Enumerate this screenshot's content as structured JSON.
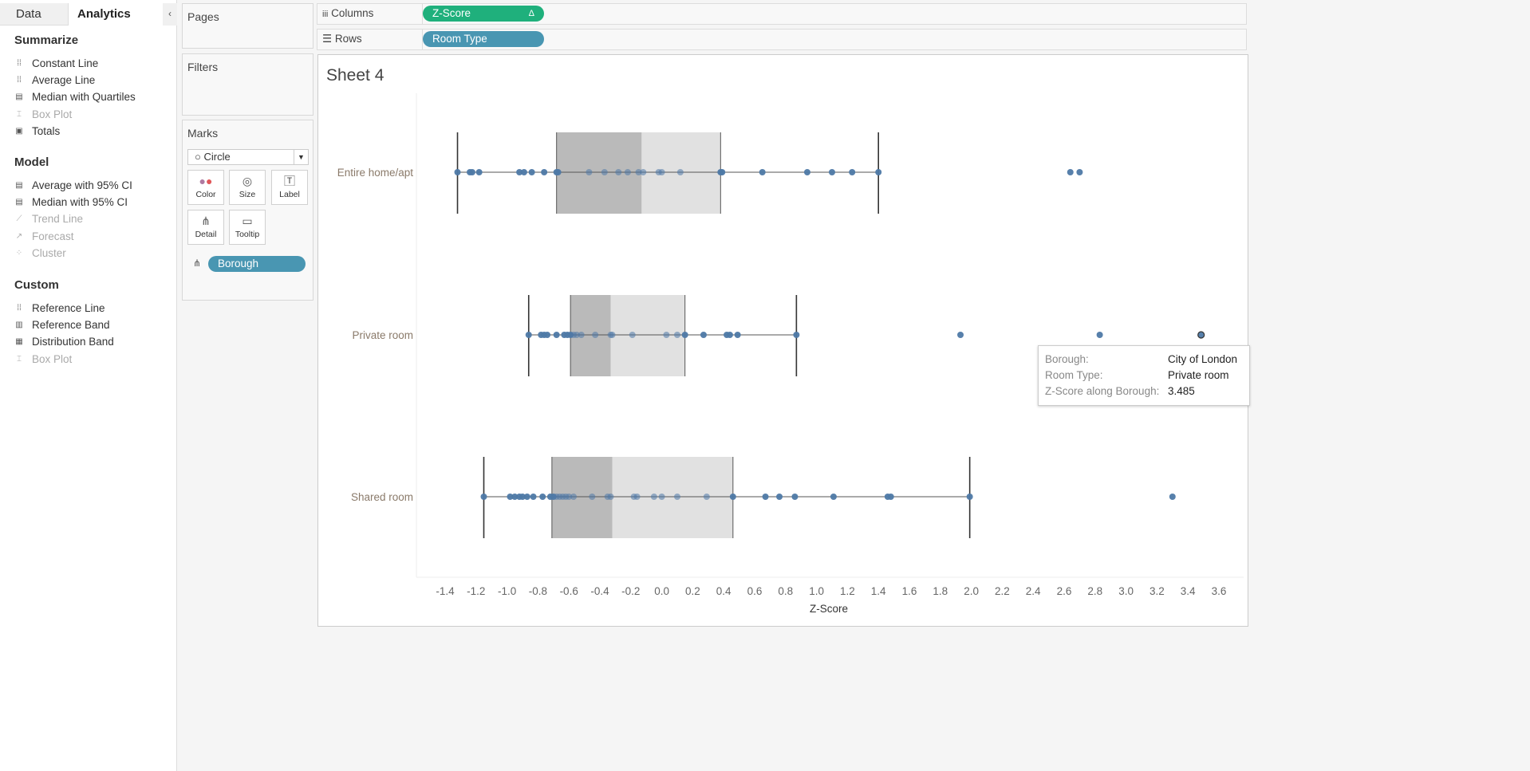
{
  "left_panel": {
    "tabs": [
      "Data",
      "Analytics"
    ],
    "collapse_glyph": "‹",
    "sections": [
      {
        "title": "Summarize",
        "items": [
          {
            "label": "Constant Line",
            "icon": "constant-line-icon",
            "enabled": true
          },
          {
            "label": "Average Line",
            "icon": "average-line-icon",
            "enabled": true
          },
          {
            "label": "Median with Quartiles",
            "icon": "median-quartiles-icon",
            "enabled": true
          },
          {
            "label": "Box Plot",
            "icon": "box-plot-icon",
            "enabled": false
          },
          {
            "label": "Totals",
            "icon": "totals-icon",
            "enabled": true
          }
        ]
      },
      {
        "title": "Model",
        "items": [
          {
            "label": "Average with 95% CI",
            "icon": "average-ci-icon",
            "enabled": true
          },
          {
            "label": "Median with 95% CI",
            "icon": "median-ci-icon",
            "enabled": true
          },
          {
            "label": "Trend Line",
            "icon": "trend-line-icon",
            "enabled": false
          },
          {
            "label": "Forecast",
            "icon": "forecast-icon",
            "enabled": false
          },
          {
            "label": "Cluster",
            "icon": "cluster-icon",
            "enabled": false
          }
        ]
      },
      {
        "title": "Custom",
        "items": [
          {
            "label": "Reference Line",
            "icon": "reference-line-icon",
            "enabled": true
          },
          {
            "label": "Reference Band",
            "icon": "reference-band-icon",
            "enabled": true
          },
          {
            "label": "Distribution Band",
            "icon": "distribution-band-icon",
            "enabled": true
          },
          {
            "label": "Box Plot",
            "icon": "box-plot-icon",
            "enabled": false
          }
        ]
      }
    ]
  },
  "cards": {
    "pages": "Pages",
    "filters": "Filters",
    "marks": "Marks",
    "mark_type": "Circle",
    "buttons": [
      "Color",
      "Size",
      "Label",
      "Detail",
      "Tooltip"
    ],
    "detail_pill": "Borough"
  },
  "shelves": {
    "columns_label": "Columns",
    "columns_pill": "Z-Score",
    "columns_pill_delta": "Δ",
    "rows_label": "Rows",
    "rows_pill": "Room Type"
  },
  "colors": {
    "green_pill": "#1fb07c",
    "blue_pill": "#4996b2",
    "mark": "#4e79a7",
    "box_dark": "#bababa",
    "box_light": "#e1e1e1"
  },
  "sheet_title": "Sheet 4",
  "tooltip": {
    "rows": [
      {
        "k": "Borough:",
        "v": "City of London"
      },
      {
        "k": "Room Type:",
        "v": "Private room"
      },
      {
        "k": "Z-Score along Borough:",
        "v": "3.485"
      }
    ]
  },
  "chart_data": {
    "type": "scatter",
    "title": "Sheet 4",
    "xlabel": "Z-Score",
    "ylabel": "Room Type",
    "xlim": [
      -1.5,
      3.7
    ],
    "xticks": [
      -1.4,
      -1.2,
      -1.0,
      -0.8,
      -0.6,
      -0.4,
      -0.2,
      0.0,
      0.2,
      0.4,
      0.6,
      0.8,
      1.0,
      1.2,
      1.4,
      1.6,
      1.8,
      2.0,
      2.2,
      2.4,
      2.6,
      2.8,
      3.0,
      3.2,
      3.4,
      3.6
    ],
    "xtick_labels": [
      "-1.4",
      "-1.2",
      "-1.0",
      "-0.8",
      "-0.6",
      "-0.4",
      "-0.2",
      "0.0",
      "0.2",
      "0.4",
      "0.6",
      "0.8",
      "1.0",
      "1.2",
      "1.4",
      "1.6",
      "1.8",
      "2.0",
      "2.2",
      "2.4",
      "2.6",
      "2.8",
      "3.0",
      "3.2",
      "3.4",
      "3.6"
    ],
    "series": [
      {
        "name": "Entire home/apt",
        "box": {
          "whisker_low": -1.32,
          "q1": -0.68,
          "median": -0.13,
          "q3": 0.38,
          "whisker_high": 1.4
        },
        "values": [
          -1.32,
          -1.24,
          -1.225,
          -1.18,
          -0.92,
          -0.89,
          -0.84,
          -0.76,
          -0.68,
          -0.67,
          -0.47,
          -0.37,
          -0.28,
          -0.22,
          -0.15,
          -0.12,
          -0.02,
          0.0,
          0.12,
          0.38,
          0.39,
          0.65,
          0.94,
          1.1,
          1.23,
          1.4,
          2.64,
          2.7
        ]
      },
      {
        "name": "Private room",
        "box": {
          "whisker_low": -0.86,
          "q1": -0.59,
          "median": -0.33,
          "q3": 0.15,
          "whisker_high": 0.87
        },
        "values": [
          -0.86,
          -0.78,
          -0.76,
          -0.74,
          -0.68,
          -0.63,
          -0.61,
          -0.59,
          -0.57,
          -0.55,
          -0.52,
          -0.43,
          -0.33,
          -0.32,
          -0.19,
          0.03,
          0.1,
          0.15,
          0.27,
          0.42,
          0.44,
          0.49,
          0.87,
          1.93,
          2.83,
          3.485
        ]
      },
      {
        "name": "Shared room",
        "box": {
          "whisker_low": -1.15,
          "q1": -0.71,
          "median": -0.32,
          "q3": 0.46,
          "whisker_high": 1.99
        },
        "values": [
          -1.15,
          -0.98,
          -0.95,
          -0.92,
          -0.9,
          -0.87,
          -0.83,
          -0.77,
          -0.72,
          -0.7,
          -0.68,
          -0.66,
          -0.64,
          -0.62,
          -0.6,
          -0.57,
          -0.45,
          -0.35,
          -0.33,
          -0.18,
          -0.16,
          -0.05,
          0.0,
          0.1,
          0.29,
          0.46,
          0.67,
          0.76,
          0.86,
          1.11,
          1.46,
          1.48,
          1.99,
          3.3
        ]
      }
    ],
    "highlighted": {
      "series": "Private room",
      "value": 3.485
    }
  }
}
